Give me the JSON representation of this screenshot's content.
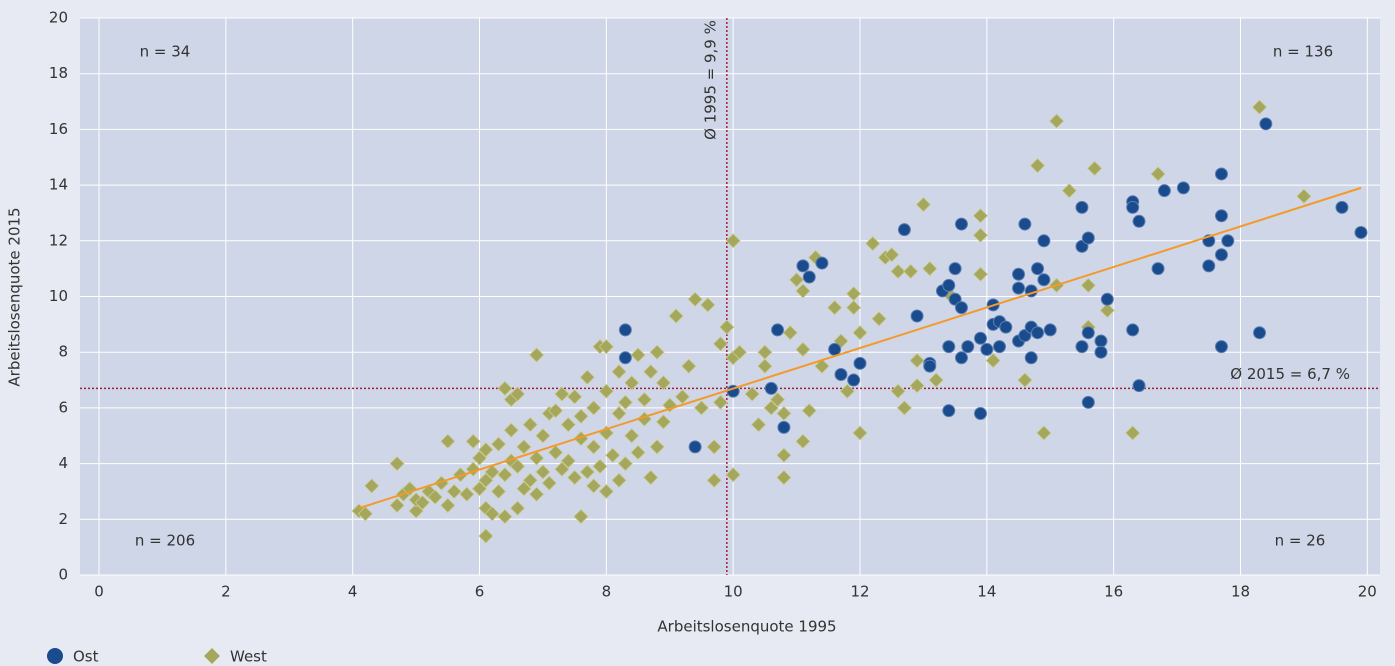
{
  "chart_data": {
    "type": "scatter",
    "x_label": "Arbeitslosenquote 1995",
    "y_label": "Arbeitslosenquote 2015",
    "xlim": [
      -0.3,
      20.2
    ],
    "ylim": [
      0,
      20
    ],
    "xticks": [
      0,
      2,
      4,
      6,
      8,
      10,
      12,
      14,
      16,
      18,
      20
    ],
    "yticks": [
      0,
      2,
      4,
      6,
      8,
      10,
      12,
      14,
      16,
      18,
      20
    ],
    "grid": true,
    "legend": "bottom-left",
    "series": [
      {
        "name": "West",
        "color": "#a4a75c",
        "marker": "diamond",
        "x": [
          4.1,
          4.2,
          4.3,
          4.7,
          4.7,
          4.8,
          4.9,
          5.0,
          5.0,
          5.1,
          5.2,
          5.3,
          5.4,
          5.5,
          5.5,
          5.6,
          5.7,
          5.8,
          5.9,
          5.9,
          6.0,
          6.0,
          6.1,
          6.1,
          6.1,
          6.1,
          6.2,
          6.2,
          6.3,
          6.3,
          6.4,
          6.4,
          6.4,
          6.5,
          6.5,
          6.5,
          6.6,
          6.6,
          6.6,
          6.7,
          6.7,
          6.8,
          6.8,
          6.9,
          6.9,
          6.9,
          7.0,
          7.0,
          7.1,
          7.1,
          7.2,
          7.2,
          7.3,
          7.3,
          7.4,
          7.4,
          7.5,
          7.5,
          7.6,
          7.6,
          7.6,
          7.7,
          7.7,
          7.8,
          7.8,
          7.8,
          7.9,
          7.9,
          8.0,
          8.0,
          8.0,
          8.0,
          8.1,
          8.2,
          8.2,
          8.2,
          8.3,
          8.3,
          8.4,
          8.4,
          8.5,
          8.5,
          8.6,
          8.6,
          8.7,
          8.7,
          8.8,
          8.8,
          8.9,
          8.9,
          9.0,
          9.1,
          9.2,
          9.3,
          9.4,
          9.5,
          9.6,
          9.7,
          9.7,
          9.8,
          9.8,
          9.9,
          10.0,
          10.0,
          10.0,
          10.1,
          10.3,
          10.4,
          10.5,
          10.5,
          10.6,
          10.7,
          10.8,
          10.8,
          10.8,
          10.9,
          11.0,
          11.1,
          11.1,
          11.1,
          11.2,
          11.3,
          11.4,
          11.6,
          11.7,
          11.8,
          11.9,
          11.9,
          12.0,
          12.0,
          12.2,
          12.3,
          12.4,
          12.5,
          12.6,
          12.6,
          12.7,
          12.8,
          12.9,
          12.9,
          13.0,
          13.1,
          13.2,
          13.4,
          13.9,
          13.9,
          13.9,
          14.1,
          14.6,
          14.8,
          14.9,
          15.1,
          15.1,
          15.3,
          15.6,
          15.6,
          15.7,
          15.9,
          16.3,
          16.7,
          18.3,
          19.0
        ],
        "values": [
          2.3,
          2.2,
          3.2,
          4.0,
          2.5,
          2.9,
          3.1,
          2.3,
          2.7,
          2.6,
          3.0,
          2.8,
          3.3,
          2.5,
          4.8,
          3.0,
          3.6,
          2.9,
          3.8,
          4.8,
          3.1,
          4.2,
          1.4,
          2.4,
          3.4,
          4.5,
          2.2,
          3.7,
          3.0,
          4.7,
          2.1,
          3.6,
          6.7,
          4.1,
          5.2,
          6.3,
          2.4,
          3.9,
          6.5,
          3.1,
          4.6,
          3.4,
          5.4,
          2.9,
          7.9,
          4.2,
          3.7,
          5.0,
          5.8,
          3.3,
          4.4,
          5.9,
          3.8,
          6.5,
          4.1,
          5.4,
          3.5,
          6.4,
          2.1,
          4.9,
          5.7,
          3.7,
          7.1,
          3.2,
          4.6,
          6.0,
          3.9,
          8.2,
          3.0,
          5.1,
          6.6,
          8.2,
          4.3,
          3.4,
          5.8,
          7.3,
          4.0,
          6.2,
          5.0,
          6.9,
          4.4,
          7.9,
          5.6,
          6.3,
          3.5,
          7.3,
          4.6,
          8.0,
          5.5,
          6.9,
          6.1,
          9.3,
          6.4,
          7.5,
          9.9,
          6.0,
          9.7,
          4.6,
          3.4,
          6.2,
          8.3,
          8.9,
          3.6,
          7.8,
          12.0,
          8.0,
          6.5,
          5.4,
          8.0,
          7.5,
          6.0,
          6.3,
          4.3,
          3.5,
          5.8,
          8.7,
          10.6,
          10.2,
          4.8,
          8.1,
          5.9,
          11.4,
          7.5,
          9.6,
          8.4,
          6.6,
          10.1,
          9.6,
          5.1,
          8.7,
          11.9,
          9.2,
          11.4,
          11.5,
          10.9,
          6.6,
          6.0,
          10.9,
          7.7,
          6.8,
          13.3,
          11.0,
          7.0,
          10.1,
          12.9,
          12.2,
          10.8,
          7.7,
          7.0,
          14.7,
          5.1,
          16.3,
          10.4,
          13.8,
          10.4,
          8.9,
          14.6,
          9.5,
          5.1,
          14.4,
          16.8,
          13.6
        ]
      },
      {
        "name": "Ost",
        "color": "#1a4b8c",
        "marker": "circle",
        "x": [
          8.3,
          8.3,
          9.4,
          10.0,
          10.6,
          10.7,
          10.8,
          11.1,
          11.2,
          11.4,
          11.6,
          11.7,
          11.9,
          12.0,
          12.7,
          12.9,
          13.1,
          13.1,
          13.3,
          13.4,
          13.4,
          13.4,
          13.5,
          13.5,
          13.6,
          13.6,
          13.6,
          13.7,
          13.9,
          13.9,
          14.0,
          14.1,
          14.1,
          14.2,
          14.2,
          14.3,
          14.5,
          14.5,
          14.5,
          14.6,
          14.6,
          14.7,
          14.7,
          14.7,
          14.8,
          14.8,
          14.9,
          14.9,
          15.0,
          15.5,
          15.5,
          15.5,
          15.6,
          15.6,
          15.6,
          15.8,
          15.8,
          15.9,
          16.3,
          16.3,
          16.3,
          16.4,
          16.4,
          16.7,
          16.8,
          17.1,
          17.5,
          17.5,
          17.7,
          17.7,
          17.7,
          17.7,
          17.8,
          18.3,
          18.4,
          19.6,
          19.9
        ],
        "values": [
          7.8,
          8.8,
          4.6,
          6.6,
          6.7,
          8.8,
          5.3,
          11.1,
          10.7,
          11.2,
          8.1,
          7.2,
          7.0,
          7.6,
          12.4,
          9.3,
          7.6,
          7.5,
          10.2,
          10.4,
          5.9,
          8.2,
          11.0,
          9.9,
          12.6,
          9.6,
          7.8,
          8.2,
          8.5,
          5.8,
          8.1,
          9.7,
          9.0,
          9.1,
          8.2,
          8.9,
          10.8,
          10.3,
          8.4,
          12.6,
          8.6,
          10.2,
          8.9,
          7.8,
          11.0,
          8.7,
          12.0,
          10.6,
          8.8,
          13.2,
          11.8,
          8.2,
          12.1,
          8.7,
          6.2,
          8.4,
          8.0,
          9.9,
          13.4,
          13.2,
          8.8,
          12.7,
          6.8,
          11.0,
          13.8,
          13.9,
          12.0,
          11.1,
          14.4,
          12.9,
          11.5,
          8.2,
          12.0,
          8.7,
          16.2,
          13.2,
          12.3
        ]
      }
    ],
    "trend": {
      "color": "#f39a2b",
      "x": [
        4.1,
        19.9
      ],
      "values": [
        2.4,
        13.9
      ]
    },
    "mean_x": {
      "value": 9.9,
      "label": "Ø 1995 = 9,9 %",
      "color": "#a0203c"
    },
    "mean_y": {
      "value": 6.7,
      "label": "Ø 2015 = 6,7 %",
      "color": "#a0203c"
    },
    "annotations": [
      "n = 34",
      "n = 136",
      "n = 206",
      "n = 26"
    ]
  }
}
